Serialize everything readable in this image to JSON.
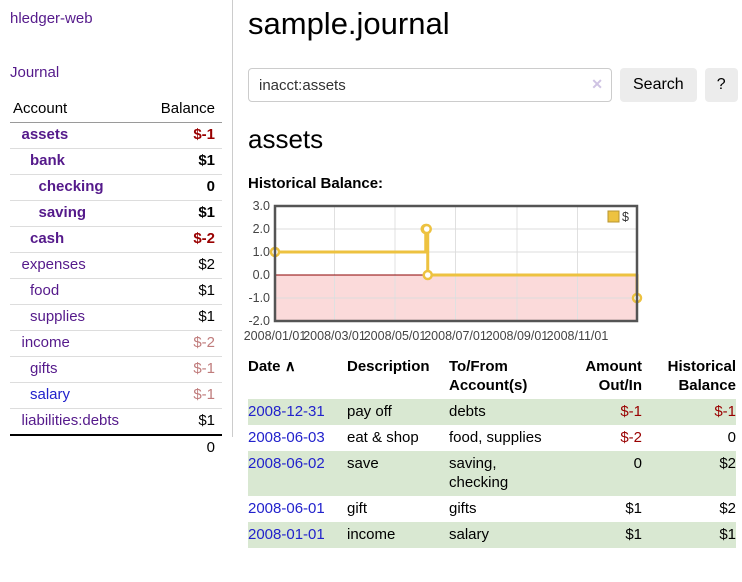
{
  "colors": {
    "purple": "#551a8b",
    "blue": "#2222cc",
    "neg-strong": "#990000",
    "neg-soft": "#c07c7c",
    "row-green": "#d9e8d2",
    "gold": "#edc240",
    "divider": "#cccccc"
  },
  "sidebar": {
    "brand": "hledger-web",
    "nav": {
      "journal": "Journal"
    },
    "accounts_table": {
      "account_header": "Account",
      "balance_header": "Balance",
      "rows": [
        {
          "name": "assets",
          "balance": "$-1",
          "indent": 1,
          "bold": true,
          "negative": "strong",
          "link": "purple"
        },
        {
          "name": "bank",
          "balance": "$1",
          "indent": 2,
          "bold": true,
          "negative": null,
          "link": "purple"
        },
        {
          "name": "checking",
          "balance": "0",
          "indent": 3,
          "bold": true,
          "negative": null,
          "link": "purple"
        },
        {
          "name": "saving",
          "balance": "$1",
          "indent": 3,
          "bold": true,
          "negative": null,
          "link": "purple"
        },
        {
          "name": "cash",
          "balance": "$-2",
          "indent": 2,
          "bold": true,
          "negative": "strong",
          "link": "purple"
        },
        {
          "name": "expenses",
          "balance": "$2",
          "indent": 1,
          "bold": false,
          "negative": null,
          "link": "purple"
        },
        {
          "name": "food",
          "balance": "$1",
          "indent": 2,
          "bold": false,
          "negative": null,
          "link": "purple"
        },
        {
          "name": "supplies",
          "balance": "$1",
          "indent": 2,
          "bold": false,
          "negative": null,
          "link": "purple"
        },
        {
          "name": "income",
          "balance": "$-2",
          "indent": 1,
          "bold": false,
          "negative": "soft",
          "link": "purple"
        },
        {
          "name": "gifts",
          "balance": "$-1",
          "indent": 2,
          "bold": false,
          "negative": "soft",
          "link": "purple"
        },
        {
          "name": "salary",
          "balance": "$-1",
          "indent": 2,
          "bold": false,
          "negative": "soft",
          "link": "blue"
        },
        {
          "name": "liabilities:debts",
          "balance": "$1",
          "indent": 1,
          "bold": false,
          "negative": null,
          "link": "purple"
        }
      ],
      "total": "0"
    }
  },
  "main": {
    "title": "sample.journal",
    "search": {
      "value": "inacct:assets",
      "clear_icon": "✕",
      "search_button": "Search",
      "help_button": "?"
    },
    "account_heading": "assets",
    "chart_title": "Historical Balance:"
  },
  "chart_data": {
    "type": "line",
    "style": "step-after",
    "title": "Historical Balance",
    "legend": "$",
    "legend_position": "top-right",
    "grid": true,
    "series": [
      {
        "name": "$",
        "color": "#edc240",
        "points": [
          [
            "2008-01-01",
            1
          ],
          [
            "2008-06-01",
            2
          ],
          [
            "2008-06-02",
            2
          ],
          [
            "2008-06-03",
            0
          ],
          [
            "2008-12-31",
            -1
          ]
        ]
      }
    ],
    "xlim": [
      "2008-01-01",
      "2008-12-31"
    ],
    "ylim": [
      -2,
      3
    ],
    "y_ticks": [
      "3.0",
      "2.0",
      "1.0",
      "0.0",
      "-1.0",
      "-2.0"
    ],
    "x_ticks": [
      "2008/01/01",
      "2008/03/01",
      "2008/05/01",
      "2008/07/01",
      "2008/09/01",
      "2008/11/01"
    ],
    "negative_area_color": "#fbdada",
    "zero_line_color": "#8b0000"
  },
  "register": {
    "headers": {
      "date": "Date",
      "sort_indicator": "∧",
      "description": "Description",
      "accounts": "To/From Account(s)",
      "amount": "Amount Out/In",
      "balance": "Historical Balance"
    },
    "rows": [
      {
        "date": "2008-12-31",
        "description": "pay off",
        "accounts": "debts",
        "amount": "$-1",
        "amount_negative": true,
        "balance": "$-1",
        "balance_negative": true
      },
      {
        "date": "2008-06-03",
        "description": "eat & shop",
        "accounts": "food, supplies",
        "amount": "$-2",
        "amount_negative": true,
        "balance": "0",
        "balance_negative": false
      },
      {
        "date": "2008-06-02",
        "description": "save",
        "accounts": "saving, checking",
        "amount": "0",
        "amount_negative": false,
        "balance": "$2",
        "balance_negative": false
      },
      {
        "date": "2008-06-01",
        "description": "gift",
        "accounts": "gifts",
        "amount": "$1",
        "amount_negative": false,
        "balance": "$2",
        "balance_negative": false
      },
      {
        "date": "2008-01-01",
        "description": "income",
        "accounts": "salary",
        "amount": "$1",
        "amount_negative": false,
        "balance": "$1",
        "balance_negative": false
      }
    ]
  }
}
